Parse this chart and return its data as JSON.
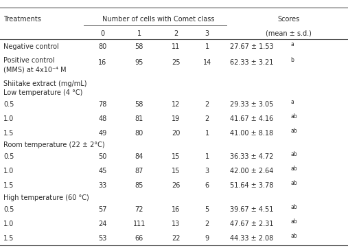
{
  "rows": [
    {
      "label": "Negative control",
      "c0": "80",
      "c1": "58",
      "c2": "11",
      "c3": "1",
      "score": "27.67 ± 1.53",
      "sup": "a",
      "section": false,
      "multiline": false
    },
    {
      "label": "Positive control\n(MMS) at 4x10⁻⁴ M",
      "c0": "16",
      "c1": "95",
      "c2": "25",
      "c3": "14",
      "score": "62.33 ± 3.21",
      "sup": "b",
      "section": false,
      "multiline": true
    },
    {
      "label": "Shiitake extract (mg/mL)",
      "c0": "",
      "c1": "",
      "c2": "",
      "c3": "",
      "score": "",
      "sup": "",
      "section": true,
      "multiline": false
    },
    {
      "label": "Low temperature (4 °C)",
      "c0": "",
      "c1": "",
      "c2": "",
      "c3": "",
      "score": "",
      "sup": "",
      "section": true,
      "multiline": false
    },
    {
      "label": "0.5",
      "c0": "78",
      "c1": "58",
      "c2": "12",
      "c3": "2",
      "score": "29.33 ± 3.05",
      "sup": "a",
      "section": false,
      "multiline": false
    },
    {
      "label": "1.0",
      "c0": "48",
      "c1": "81",
      "c2": "19",
      "c3": "2",
      "score": "41.67 ± 4.16",
      "sup": "ab",
      "section": false,
      "multiline": false
    },
    {
      "label": "1.5",
      "c0": "49",
      "c1": "80",
      "c2": "20",
      "c3": "1",
      "score": "41.00 ± 8.18",
      "sup": "ab",
      "section": false,
      "multiline": false
    },
    {
      "label": "Room temperature (22 ± 2°C)",
      "c0": "",
      "c1": "",
      "c2": "",
      "c3": "",
      "score": "",
      "sup": "",
      "section": true,
      "multiline": false
    },
    {
      "label": "0.5",
      "c0": "50",
      "c1": "84",
      "c2": "15",
      "c3": "1",
      "score": "36.33 ± 4.72",
      "sup": "ab",
      "section": false,
      "multiline": false
    },
    {
      "label": "1.0",
      "c0": "45",
      "c1": "87",
      "c2": "15",
      "c3": "3",
      "score": "42.00 ± 2.64",
      "sup": "ab",
      "section": false,
      "multiline": false
    },
    {
      "label": "1.5",
      "c0": "33",
      "c1": "85",
      "c2": "26",
      "c3": "6",
      "score": "51.64 ± 3.78",
      "sup": "ab",
      "section": false,
      "multiline": false
    },
    {
      "label": "High temperature (60 °C)",
      "c0": "",
      "c1": "",
      "c2": "",
      "c3": "",
      "score": "",
      "sup": "",
      "section": true,
      "multiline": false
    },
    {
      "label": "0.5",
      "c0": "57",
      "c1": "72",
      "c2": "16",
      "c3": "5",
      "score": "39.67 ± 4.51",
      "sup": "ab",
      "section": false,
      "multiline": false
    },
    {
      "label": "1.0",
      "c0": "24",
      "c1": "111",
      "c2": "13",
      "c3": "2",
      "score": "47.67 ± 2.31",
      "sup": "ab",
      "section": false,
      "multiline": false
    },
    {
      "label": "1.5",
      "c0": "53",
      "c1": "66",
      "c2": "22",
      "c3": "9",
      "score": "44.33 ± 2.08",
      "sup": "ab",
      "section": false,
      "multiline": false
    }
  ],
  "bg_color": "#ffffff",
  "text_color": "#2a2a2a",
  "line_color": "#555555",
  "fs_main": 7.0,
  "fs_sup": 5.5
}
